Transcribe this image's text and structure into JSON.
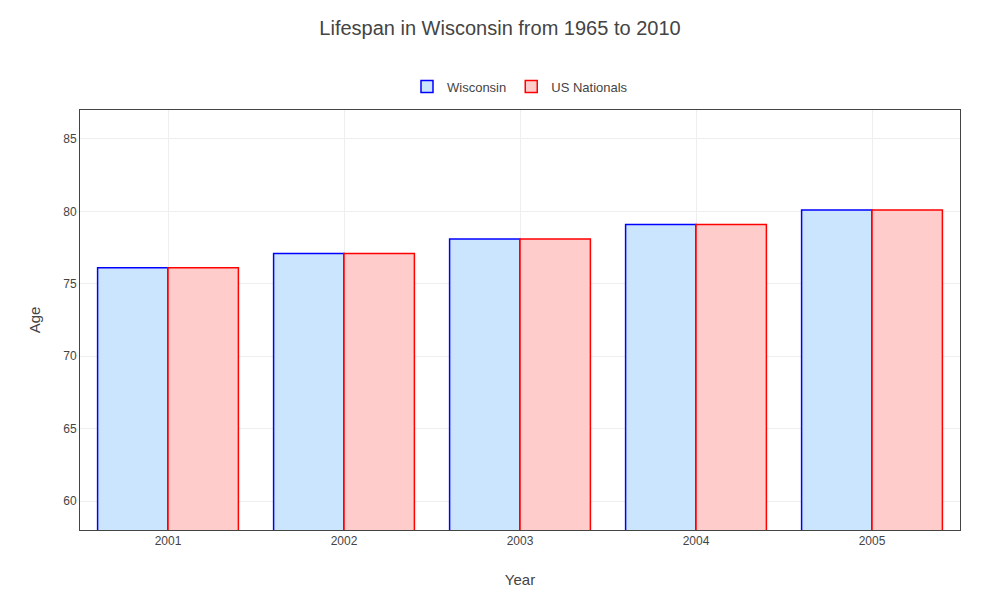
{
  "chart_data": {
    "type": "bar",
    "title": "Lifespan in Wisconsin from 1965 to 2010",
    "xlabel": "Year",
    "ylabel": "Age",
    "categories": [
      "2001",
      "2002",
      "2003",
      "2004",
      "2005"
    ],
    "series": [
      {
        "name": "Wisconsin",
        "color": "#cce5ff",
        "values": [
          76.1,
          77.1,
          78.1,
          79.1,
          80.1
        ]
      },
      {
        "name": "US Nationals",
        "color": "#ffcccc",
        "values": [
          76.1,
          77.1,
          78.1,
          79.1,
          80.1
        ]
      }
    ],
    "ylim": [
      58,
      87
    ],
    "yticks": [
      60,
      65,
      70,
      75,
      80,
      85
    ],
    "grid": true,
    "legend": "upper center"
  }
}
